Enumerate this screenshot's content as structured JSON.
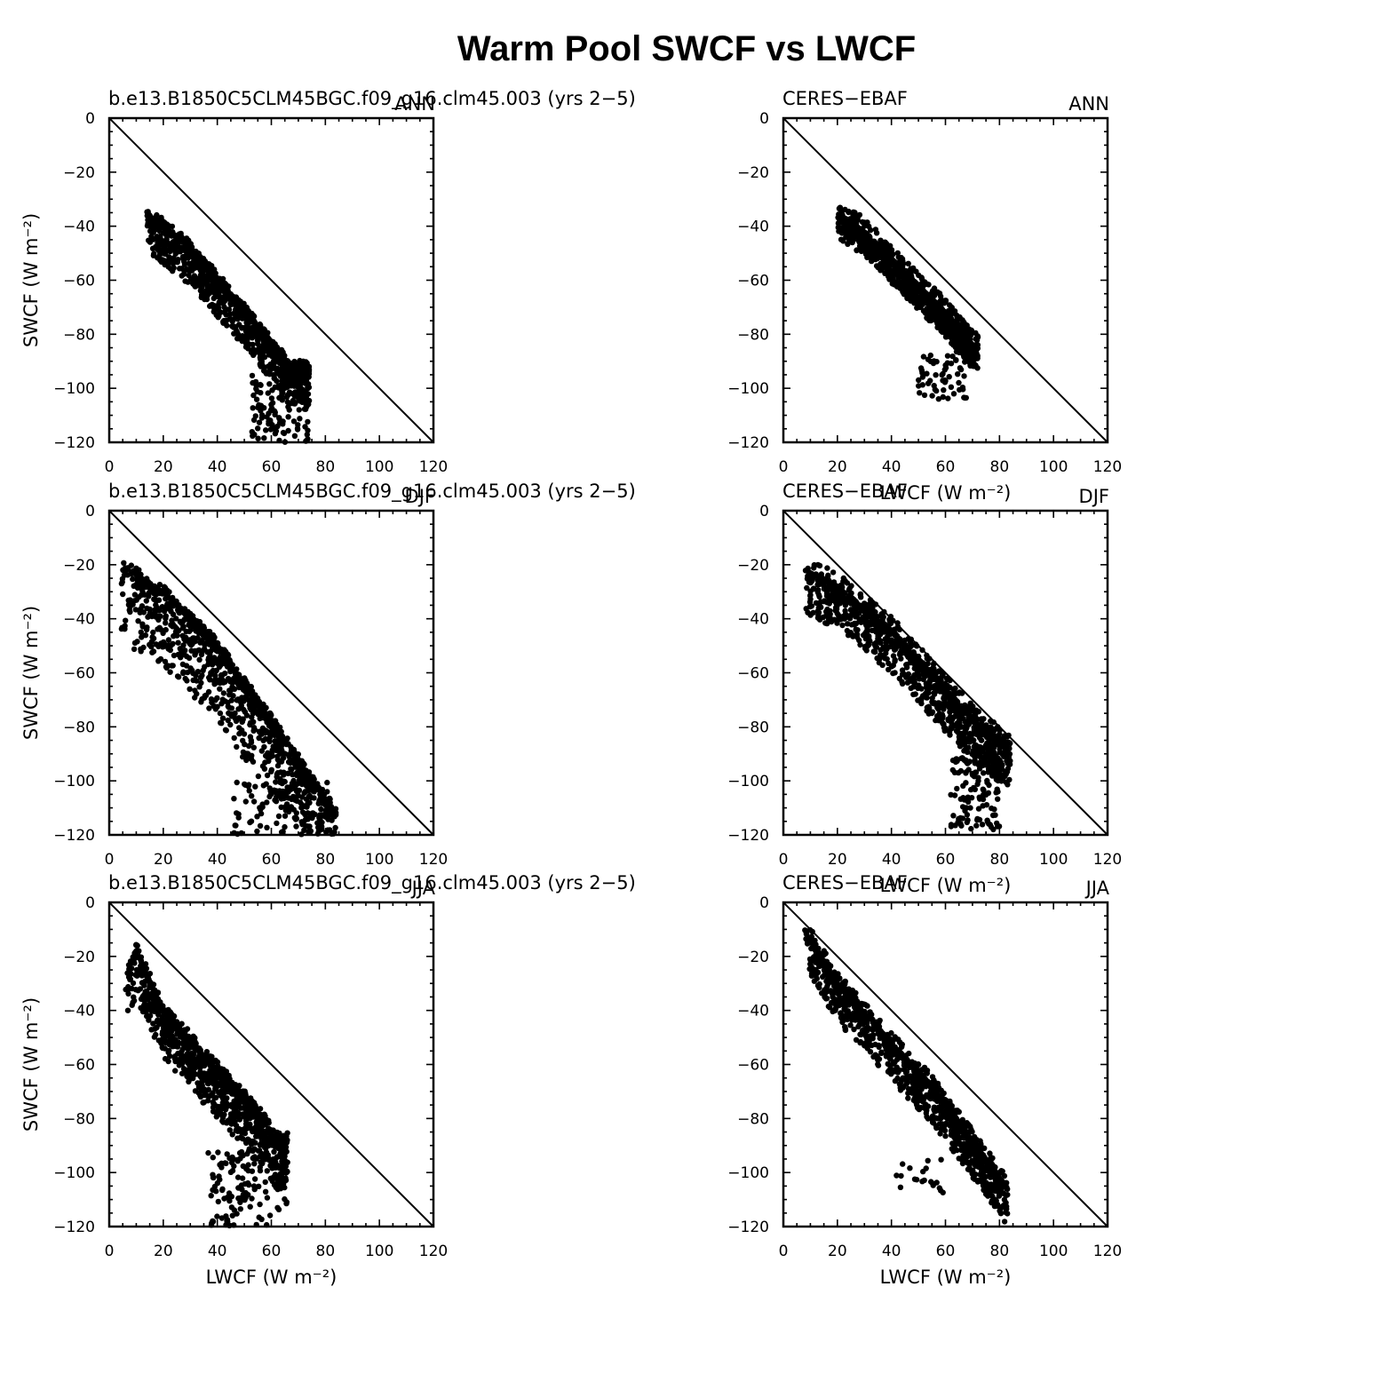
{
  "figure_title": "Warm Pool SWCF vs LWCF",
  "chart_data": [
    {
      "type": "scatter",
      "panel": "model-ANN",
      "left_label": "b.e13.B1850C5CLM45BGC.f09_g16.clm45.003 (yrs 2−5)",
      "right_label": "ANN",
      "xlabel": "",
      "ylabel": "SWCF (W m⁻²)",
      "xlim": [
        0,
        120
      ],
      "ylim": [
        -120,
        0
      ],
      "xticks": [
        0,
        20,
        40,
        60,
        80,
        100,
        120
      ],
      "yticks": [
        0,
        -20,
        -40,
        -60,
        -80,
        -100,
        -120
      ],
      "reference_line": [
        [
          0,
          0
        ],
        [
          120,
          -120
        ]
      ],
      "cloud": {
        "count": 1100,
        "seed": 11,
        "x_range": [
          14,
          74
        ],
        "ridge": [
          [
            14,
            -35
          ],
          [
            30,
            -48
          ],
          [
            45,
            -65
          ],
          [
            55,
            -77
          ],
          [
            62,
            -85
          ],
          [
            66,
            -92
          ]
        ],
        "below_spread": 14,
        "above_spread": 2.5,
        "tail": {
          "x": [
            52,
            74
          ],
          "y": [
            -120,
            -95
          ],
          "count": 110
        }
      }
    },
    {
      "type": "scatter",
      "panel": "obs-ANN",
      "left_label": "CERES−EBAF",
      "right_label": "ANN",
      "xlabel": "LWCF (W m⁻²)",
      "ylabel": "",
      "xlim": [
        0,
        120
      ],
      "ylim": [
        -120,
        0
      ],
      "xticks": [
        0,
        20,
        40,
        60,
        80,
        100,
        120
      ],
      "yticks": [
        0,
        -20,
        -40,
        -60,
        -80,
        -100,
        -120
      ],
      "reference_line": [
        [
          0,
          0
        ],
        [
          120,
          -120
        ]
      ],
      "cloud": {
        "count": 1200,
        "seed": 23,
        "x_range": [
          20,
          72
        ],
        "ridge": [
          [
            20,
            -35
          ],
          [
            30,
            -42
          ],
          [
            40,
            -52
          ],
          [
            50,
            -62
          ],
          [
            60,
            -72
          ],
          [
            70,
            -84
          ]
        ],
        "below_spread": 9,
        "above_spread": 5,
        "tail": {
          "x": [
            50,
            68
          ],
          "y": [
            -104,
            -86
          ],
          "count": 60
        }
      }
    },
    {
      "type": "scatter",
      "panel": "model-DJF",
      "left_label": "b.e13.B1850C5CLM45BGC.f09_g16.clm45.003 (yrs 2−5)",
      "right_label": "DJF",
      "xlabel": "",
      "ylabel": "SWCF (W m⁻²)",
      "xlim": [
        0,
        120
      ],
      "ylim": [
        -120,
        0
      ],
      "xticks": [
        0,
        20,
        40,
        60,
        80,
        100,
        120
      ],
      "yticks": [
        0,
        -20,
        -40,
        -60,
        -80,
        -100,
        -120
      ],
      "reference_line": [
        [
          0,
          0
        ],
        [
          120,
          -120
        ]
      ],
      "cloud": {
        "count": 1200,
        "seed": 37,
        "x_range": [
          4,
          84
        ],
        "ridge": [
          [
            4,
            -20
          ],
          [
            20,
            -30
          ],
          [
            40,
            -50
          ],
          [
            60,
            -78
          ],
          [
            75,
            -100
          ],
          [
            84,
            -112
          ]
        ],
        "below_spread": 28,
        "above_spread": 2.5,
        "tail": {
          "x": [
            45,
            82
          ],
          "y": [
            -120,
            -100
          ],
          "count": 80
        }
      }
    },
    {
      "type": "scatter",
      "panel": "obs-DJF",
      "left_label": "CERES−EBAF",
      "right_label": "DJF",
      "xlabel": "LWCF (W m⁻²)",
      "ylabel": "",
      "xlim": [
        0,
        120
      ],
      "ylim": [
        -120,
        0
      ],
      "xticks": [
        0,
        20,
        40,
        60,
        80,
        100,
        120
      ],
      "yticks": [
        0,
        -20,
        -40,
        -60,
        -80,
        -100,
        -120
      ],
      "reference_line": [
        [
          0,
          0
        ],
        [
          120,
          -120
        ]
      ],
      "cloud": {
        "count": 1200,
        "seed": 41,
        "x_range": [
          8,
          84
        ],
        "ridge": [
          [
            8,
            -22
          ],
          [
            20,
            -28
          ],
          [
            40,
            -44
          ],
          [
            60,
            -66
          ],
          [
            75,
            -82
          ],
          [
            84,
            -86
          ]
        ],
        "below_spread": 16,
        "above_spread": 5,
        "tail": {
          "x": [
            62,
            80
          ],
          "y": [
            -118,
            -90
          ],
          "count": 120
        }
      }
    },
    {
      "type": "scatter",
      "panel": "model-JJA",
      "left_label": "b.e13.B1850C5CLM45BGC.f09_g16.clm45.003 (yrs 2−5)",
      "right_label": "JJA",
      "xlabel": "LWCF (W m⁻²)",
      "ylabel": "SWCF (W m⁻²)",
      "xlim": [
        0,
        120
      ],
      "ylim": [
        -120,
        0
      ],
      "xticks": [
        0,
        20,
        40,
        60,
        80,
        100,
        120
      ],
      "yticks": [
        0,
        -20,
        -40,
        -60,
        -80,
        -100,
        -120
      ],
      "reference_line": [
        [
          0,
          0
        ],
        [
          120,
          -120
        ]
      ],
      "cloud": {
        "count": 1100,
        "seed": 53,
        "x_range": [
          6,
          66
        ],
        "ridge": [
          [
            6,
            -28
          ],
          [
            10,
            -18
          ],
          [
            20,
            -40
          ],
          [
            40,
            -62
          ],
          [
            55,
            -78
          ],
          [
            62,
            -88
          ]
        ],
        "below_spread": 18,
        "above_spread": 3,
        "tail": {
          "x": [
            35,
            66
          ],
          "y": [
            -120,
            -92
          ],
          "count": 120
        }
      }
    },
    {
      "type": "scatter",
      "panel": "obs-JJA",
      "left_label": "CERES−EBAF",
      "right_label": "JJA",
      "xlabel": "LWCF (W m⁻²)",
      "ylabel": "",
      "xlim": [
        0,
        120
      ],
      "ylim": [
        -120,
        0
      ],
      "xticks": [
        0,
        20,
        40,
        60,
        80,
        100,
        120
      ],
      "yticks": [
        0,
        -20,
        -40,
        -60,
        -80,
        -100,
        -120
      ],
      "reference_line": [
        [
          0,
          0
        ],
        [
          120,
          -120
        ]
      ],
      "cloud": {
        "count": 1200,
        "seed": 67,
        "x_range": [
          8,
          83
        ],
        "ridge": [
          [
            8,
            -10
          ],
          [
            20,
            -30
          ],
          [
            40,
            -52
          ],
          [
            55,
            -68
          ],
          [
            70,
            -88
          ],
          [
            83,
            -106
          ]
        ],
        "below_spread": 14,
        "above_spread": 4,
        "tail": {
          "x": [
            40,
            60
          ],
          "y": [
            -108,
            -95
          ],
          "count": 20
        }
      }
    }
  ]
}
